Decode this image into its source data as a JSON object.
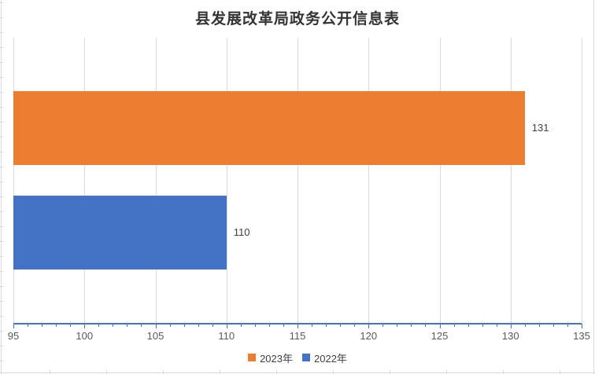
{
  "chart": {
    "title": "县发展改革局政务公开信息表"
  },
  "chart_data": {
    "type": "bar",
    "orientation": "horizontal",
    "title": "县发展改革局政务公开信息表",
    "series": [
      {
        "name": "2023年",
        "value": 131,
        "data_label": "131",
        "color": "#ED7D31"
      },
      {
        "name": "2022年",
        "value": 110,
        "data_label": "110",
        "color": "#4472C4"
      }
    ],
    "xlim": [
      95,
      135
    ],
    "x_major_step": 5,
    "x_minor_step": 1,
    "x_tick_labels": [
      "95",
      "100",
      "105",
      "110",
      "115",
      "120",
      "125",
      "130",
      "135"
    ],
    "grid": true,
    "legend_position": "bottom",
    "legend": [
      {
        "label": "2023年",
        "color": "#ED7D31"
      },
      {
        "label": "2022年",
        "color": "#4472C4"
      }
    ],
    "axis_color": "#4472C4",
    "gridline_color": "#D9D9D9",
    "title_color": "#333333",
    "label_color": "#404040",
    "tick_label_color": "#595959"
  }
}
